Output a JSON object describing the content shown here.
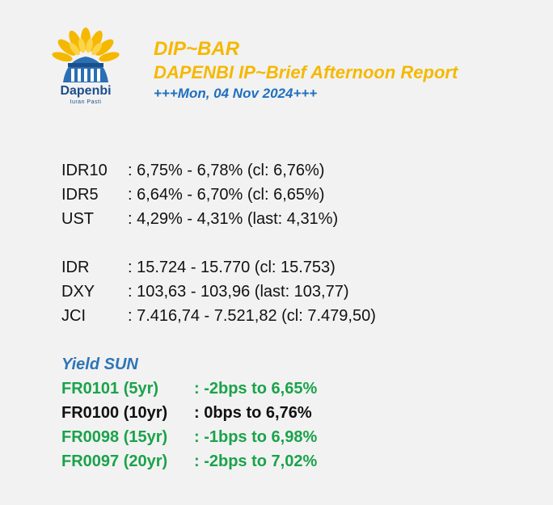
{
  "logo": {
    "icon": "sun-building-logo-icon",
    "name": "Dapenbi",
    "tagline": "Iuran Pasti"
  },
  "header": {
    "title": "DIP~BAR",
    "subtitle": "DAPENBI IP~Brief Afternoon Report",
    "date": "+++Mon, 04 Nov 2024+++"
  },
  "rates": [
    {
      "label": "IDR10",
      "value": ": 6,75% - 6,78% (cl: 6,76%)"
    },
    {
      "label": "IDR5",
      "value": ": 6,64% - 6,70% (cl: 6,65%)"
    },
    {
      "label": "UST",
      "value": ": 4,29% - 4,31% (last: 4,31%)"
    }
  ],
  "markets": [
    {
      "label": "IDR",
      "value": ": 15.724 - 15.770 (cl: 15.753)"
    },
    {
      "label": "DXY",
      "value": ": 103,63 - 103,96 (last: 103,77)"
    },
    {
      "label": "JCI",
      "value": ": 7.416,74 - 7.521,82 (cl: 7.479,50)"
    }
  ],
  "yield": {
    "title": "Yield SUN",
    "items": [
      {
        "label": "FR0101 (5yr)",
        "value": ": -2bps to 6,65%",
        "color": "#1aa34a"
      },
      {
        "label": "FR0100 (10yr)",
        "value": ": 0bps to 6,76%",
        "color": "#111111"
      },
      {
        "label": "FR0098 (15yr)",
        "value": ": -1bps to 6,98%",
        "color": "#1aa34a"
      },
      {
        "label": "FR0097 (20yr)",
        "value": ": -2bps to 7,02%",
        "color": "#1aa34a"
      }
    ]
  },
  "colors": {
    "accent_gold": "#f5b800",
    "date_blue": "#1f6fbf",
    "yield_title_blue": "#2e75b6",
    "positive_green": "#1aa34a",
    "background": "#f2f2f2"
  }
}
